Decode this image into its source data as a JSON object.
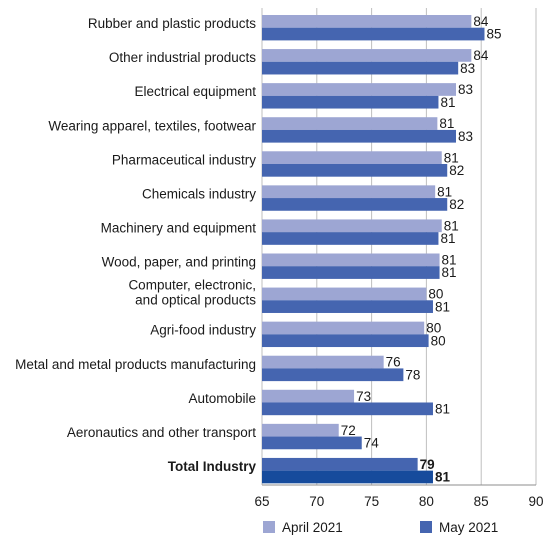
{
  "chart_data": {
    "type": "bar",
    "orientation": "horizontal",
    "categories": [
      "Rubber and plastic products",
      "Other industrial products",
      "Electrical equipment",
      "Wearing apparel, textiles, footwear",
      "Pharmaceutical industry",
      "Chemicals industry",
      "Machinery and equipment",
      "Wood, paper, and printing",
      "Computer, electronic,\nand optical products",
      "Agri-food industry",
      "Metal and metal products manufacturing",
      "Automobile",
      "Aeronautics and other transport",
      "Total Industry"
    ],
    "series": [
      {
        "name": "April 2021",
        "color": "#9da6d3",
        "values": [
          84,
          84,
          83,
          81,
          81,
          81,
          81,
          81,
          80,
          80,
          76,
          73,
          72,
          79
        ]
      },
      {
        "name": "May 2021",
        "color": "#4565b0",
        "values": [
          85,
          83,
          81,
          83,
          82,
          82,
          81,
          81,
          81,
          80,
          78,
          81,
          74,
          81
        ]
      }
    ],
    "exact_values": {
      "April 2021": [
        84.1,
        84.1,
        82.7,
        81.0,
        81.4,
        80.8,
        81.4,
        81.2,
        80.0,
        79.8,
        76.1,
        73.4,
        72.0,
        79.2
      ],
      "May 2021": [
        85.3,
        82.9,
        81.1,
        82.7,
        81.9,
        81.9,
        81.1,
        81.2,
        80.6,
        80.2,
        77.9,
        80.6,
        74.1,
        80.6
      ]
    },
    "total_colors": {
      "April 2021": "#4565b0",
      "May 2021": "#164b9c"
    },
    "total_label": "Total Industry",
    "xlim": [
      65,
      90
    ],
    "x_ticks": [
      65,
      70,
      75,
      80,
      85,
      90
    ],
    "xlabel": "",
    "ylabel": "",
    "title": "",
    "grid": "vertical",
    "legend": "bottom"
  }
}
